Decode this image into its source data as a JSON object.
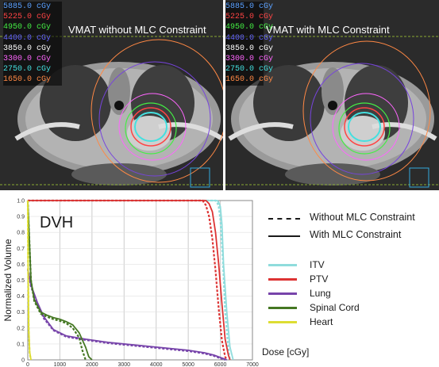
{
  "images": {
    "left_title": "VMAT without MLC Constraint",
    "right_title": "VMAT with MLC Constraint",
    "isodose_levels": [
      {
        "label": "5885.0 cGy",
        "color": "#5aa0ff"
      },
      {
        "label": "5225.0 cGy",
        "color": "#ff4444"
      },
      {
        "label": "4950.0 cGy",
        "color": "#44ee44"
      },
      {
        "label": "4400.0 cGy",
        "color": "#6666ff"
      },
      {
        "label": "3850.0 cGy",
        "color": "#ffffff"
      },
      {
        "label": "3300.0 cGy",
        "color": "#ff66ff"
      },
      {
        "label": "2750.0 cGy",
        "color": "#44e0e0"
      },
      {
        "label": "1650.0 cGy",
        "color": "#ff8844"
      }
    ]
  },
  "chart_data": {
    "type": "line",
    "title": "DVH",
    "xlabel": "Dose [cGy]",
    "ylabel": "Normalized Volume",
    "xlim": [
      0,
      7000
    ],
    "ylim": [
      0,
      1.0
    ],
    "xticks": [
      0,
      1000,
      2000,
      3000,
      4000,
      5000,
      6000,
      7000
    ],
    "yticks": [
      0,
      0.1,
      0.2,
      0.3,
      0.4,
      0.5,
      0.6,
      0.7,
      0.8,
      0.9,
      1.0
    ],
    "grid": true,
    "line_styles": [
      {
        "label": "Without MLC Constraint",
        "dash": "dashed"
      },
      {
        "label": "With MLC Constraint",
        "dash": "solid"
      }
    ],
    "structures": [
      {
        "name": "ITV",
        "color": "#8fdcdc",
        "with": [
          [
            0,
            1
          ],
          [
            5900,
            1
          ],
          [
            5950,
            0.99
          ],
          [
            6000,
            0.96
          ],
          [
            6050,
            0.85
          ],
          [
            6100,
            0.6
          ],
          [
            6200,
            0.3
          ],
          [
            6300,
            0.08
          ],
          [
            6400,
            0
          ]
        ],
        "without": [
          [
            0,
            1
          ],
          [
            5850,
            1
          ],
          [
            5900,
            0.99
          ],
          [
            5950,
            0.96
          ],
          [
            6000,
            0.88
          ],
          [
            6080,
            0.62
          ],
          [
            6150,
            0.3
          ],
          [
            6250,
            0.07
          ],
          [
            6300,
            0
          ]
        ]
      },
      {
        "name": "PTV",
        "color": "#dd3333",
        "with": [
          [
            0,
            1
          ],
          [
            5550,
            1
          ],
          [
            5650,
            0.98
          ],
          [
            5750,
            0.93
          ],
          [
            5850,
            0.8
          ],
          [
            5950,
            0.6
          ],
          [
            6050,
            0.35
          ],
          [
            6150,
            0.13
          ],
          [
            6250,
            0.03
          ],
          [
            6300,
            0
          ]
        ],
        "without": [
          [
            0,
            1
          ],
          [
            5450,
            1
          ],
          [
            5550,
            0.97
          ],
          [
            5650,
            0.9
          ],
          [
            5750,
            0.76
          ],
          [
            5850,
            0.56
          ],
          [
            5950,
            0.32
          ],
          [
            6050,
            0.12
          ],
          [
            6150,
            0.02
          ],
          [
            6200,
            0
          ]
        ]
      },
      {
        "name": "Lung",
        "color": "#7744aa",
        "with": [
          [
            0,
            0.57
          ],
          [
            100,
            0.47
          ],
          [
            300,
            0.36
          ],
          [
            500,
            0.27
          ],
          [
            800,
            0.19
          ],
          [
            1200,
            0.15
          ],
          [
            1800,
            0.13
          ],
          [
            2500,
            0.11
          ],
          [
            3500,
            0.09
          ],
          [
            4500,
            0.07
          ],
          [
            5000,
            0.06
          ],
          [
            5500,
            0.045
          ],
          [
            5800,
            0.03
          ],
          [
            6000,
            0.015
          ],
          [
            6200,
            0
          ]
        ],
        "without": [
          [
            0,
            0.57
          ],
          [
            100,
            0.46
          ],
          [
            300,
            0.35
          ],
          [
            500,
            0.26
          ],
          [
            800,
            0.185
          ],
          [
            1200,
            0.145
          ],
          [
            1800,
            0.125
          ],
          [
            2500,
            0.105
          ],
          [
            3500,
            0.085
          ],
          [
            4500,
            0.065
          ],
          [
            5000,
            0.055
          ],
          [
            5500,
            0.04
          ],
          [
            5800,
            0.025
          ],
          [
            6000,
            0.01
          ],
          [
            6150,
            0
          ]
        ]
      },
      {
        "name": "Spinal Cord",
        "color": "#447722",
        "with": [
          [
            0,
            1
          ],
          [
            100,
            0.5
          ],
          [
            200,
            0.38
          ],
          [
            400,
            0.3
          ],
          [
            600,
            0.28
          ],
          [
            800,
            0.265
          ],
          [
            1000,
            0.255
          ],
          [
            1200,
            0.24
          ],
          [
            1400,
            0.22
          ],
          [
            1600,
            0.17
          ],
          [
            1800,
            0.08
          ],
          [
            1900,
            0.02
          ],
          [
            2000,
            0
          ]
        ],
        "without": [
          [
            0,
            1
          ],
          [
            100,
            0.5
          ],
          [
            200,
            0.37
          ],
          [
            400,
            0.29
          ],
          [
            600,
            0.27
          ],
          [
            800,
            0.255
          ],
          [
            1000,
            0.245
          ],
          [
            1200,
            0.23
          ],
          [
            1400,
            0.2
          ],
          [
            1600,
            0.14
          ],
          [
            1700,
            0.06
          ],
          [
            1800,
            0
          ]
        ]
      },
      {
        "name": "Heart",
        "color": "#dddd33",
        "with": [
          [
            0,
            1
          ],
          [
            10,
            0.6
          ],
          [
            30,
            0.2
          ],
          [
            60,
            0.05
          ],
          [
            100,
            0
          ]
        ],
        "without": [
          [
            0,
            1
          ],
          [
            10,
            0.55
          ],
          [
            30,
            0.18
          ],
          [
            60,
            0.04
          ],
          [
            100,
            0
          ]
        ]
      }
    ]
  }
}
